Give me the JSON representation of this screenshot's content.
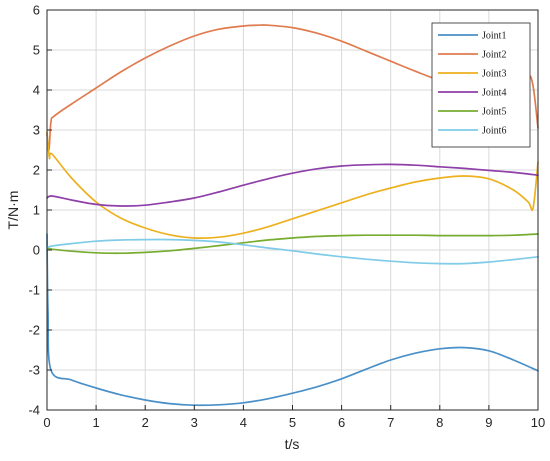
{
  "chart_data": {
    "type": "line",
    "title": "",
    "xlabel": "t/s",
    "ylabel": "T/N·m",
    "xlim": [
      0,
      10
    ],
    "ylim": [
      -4,
      6
    ],
    "xticks": [
      "0",
      "1",
      "2",
      "3",
      "4",
      "5",
      "6",
      "7",
      "8",
      "9",
      "10"
    ],
    "yticks": [
      "-4",
      "-3",
      "-2",
      "-1",
      "0",
      "1",
      "2",
      "3",
      "4",
      "5",
      "6"
    ],
    "grid": true,
    "legend_position": "top-right",
    "series": [
      {
        "name": "Joint1",
        "color": "#4a90c8",
        "points": [
          [
            0,
            0.4
          ],
          [
            0.02,
            -1.5
          ],
          [
            0.08,
            -3.0
          ],
          [
            0.5,
            -3.25
          ],
          [
            1,
            -3.45
          ],
          [
            1.5,
            -3.62
          ],
          [
            2,
            -3.75
          ],
          [
            2.5,
            -3.84
          ],
          [
            3,
            -3.88
          ],
          [
            3.5,
            -3.87
          ],
          [
            4,
            -3.82
          ],
          [
            4.5,
            -3.72
          ],
          [
            5,
            -3.58
          ],
          [
            5.5,
            -3.42
          ],
          [
            6,
            -3.22
          ],
          [
            6.5,
            -2.98
          ],
          [
            7,
            -2.75
          ],
          [
            7.5,
            -2.58
          ],
          [
            8,
            -2.47
          ],
          [
            8.5,
            -2.44
          ],
          [
            9,
            -2.52
          ],
          [
            9.5,
            -2.75
          ],
          [
            10,
            -3.02
          ]
        ]
      },
      {
        "name": "Joint2",
        "color": "#e07b4f",
        "points": [
          [
            0,
            2.9
          ],
          [
            0.04,
            2.5
          ],
          [
            0.08,
            3.2
          ],
          [
            0.15,
            3.35
          ],
          [
            0.5,
            3.65
          ],
          [
            1,
            4.05
          ],
          [
            1.5,
            4.45
          ],
          [
            2,
            4.8
          ],
          [
            2.5,
            5.1
          ],
          [
            3,
            5.35
          ],
          [
            3.5,
            5.52
          ],
          [
            4,
            5.6
          ],
          [
            4.3,
            5.62
          ],
          [
            4.5,
            5.62
          ],
          [
            5,
            5.56
          ],
          [
            5.5,
            5.42
          ],
          [
            6,
            5.22
          ],
          [
            6.5,
            4.97
          ],
          [
            7,
            4.72
          ],
          [
            7.5,
            4.47
          ],
          [
            8,
            4.24
          ],
          [
            8.5,
            4.08
          ],
          [
            9,
            4.0
          ],
          [
            9.3,
            4.02
          ],
          [
            9.6,
            4.18
          ],
          [
            9.8,
            4.38
          ],
          [
            9.9,
            4.1
          ],
          [
            10,
            3.05
          ]
        ]
      },
      {
        "name": "Joint3",
        "color": "#edb120",
        "points": [
          [
            0,
            2.95
          ],
          [
            0.05,
            2.3
          ],
          [
            0.1,
            2.4
          ],
          [
            0.5,
            1.8
          ],
          [
            1,
            1.2
          ],
          [
            1.5,
            0.8
          ],
          [
            2,
            0.55
          ],
          [
            2.5,
            0.38
          ],
          [
            3,
            0.3
          ],
          [
            3.5,
            0.32
          ],
          [
            4,
            0.42
          ],
          [
            4.5,
            0.58
          ],
          [
            5,
            0.78
          ],
          [
            5.5,
            0.98
          ],
          [
            6,
            1.18
          ],
          [
            6.5,
            1.38
          ],
          [
            7,
            1.55
          ],
          [
            7.5,
            1.7
          ],
          [
            8,
            1.8
          ],
          [
            8.5,
            1.85
          ],
          [
            9,
            1.78
          ],
          [
            9.5,
            1.5
          ],
          [
            9.8,
            1.2
          ],
          [
            9.9,
            1.05
          ],
          [
            10,
            2.2
          ]
        ]
      },
      {
        "name": "Joint4",
        "color": "#8e3fa8",
        "points": [
          [
            0,
            1.3
          ],
          [
            0.1,
            1.35
          ],
          [
            0.5,
            1.25
          ],
          [
            1,
            1.14
          ],
          [
            1.5,
            1.1
          ],
          [
            2,
            1.12
          ],
          [
            2.5,
            1.2
          ],
          [
            3,
            1.3
          ],
          [
            3.5,
            1.45
          ],
          [
            4,
            1.62
          ],
          [
            4.5,
            1.78
          ],
          [
            5,
            1.92
          ],
          [
            5.5,
            2.03
          ],
          [
            6,
            2.1
          ],
          [
            6.5,
            2.13
          ],
          [
            7,
            2.14
          ],
          [
            7.5,
            2.12
          ],
          [
            8,
            2.08
          ],
          [
            8.5,
            2.04
          ],
          [
            9,
            1.99
          ],
          [
            9.5,
            1.94
          ],
          [
            10,
            1.87
          ]
        ]
      },
      {
        "name": "Joint5",
        "color": "#77ac30",
        "points": [
          [
            0,
            0.05
          ],
          [
            0.1,
            0.02
          ],
          [
            0.5,
            -0.03
          ],
          [
            1,
            -0.07
          ],
          [
            1.5,
            -0.08
          ],
          [
            2,
            -0.06
          ],
          [
            2.5,
            -0.02
          ],
          [
            3,
            0.04
          ],
          [
            3.5,
            0.11
          ],
          [
            4,
            0.18
          ],
          [
            4.5,
            0.25
          ],
          [
            5,
            0.3
          ],
          [
            5.5,
            0.34
          ],
          [
            6,
            0.36
          ],
          [
            6.5,
            0.37
          ],
          [
            7,
            0.37
          ],
          [
            7.5,
            0.37
          ],
          [
            8,
            0.36
          ],
          [
            8.5,
            0.36
          ],
          [
            9,
            0.36
          ],
          [
            9.5,
            0.37
          ],
          [
            10,
            0.4
          ]
        ]
      },
      {
        "name": "Joint6",
        "color": "#7fcbe8",
        "points": [
          [
            0,
            0.05
          ],
          [
            0.1,
            0.1
          ],
          [
            0.5,
            0.16
          ],
          [
            1,
            0.22
          ],
          [
            1.5,
            0.25
          ],
          [
            2,
            0.26
          ],
          [
            2.5,
            0.26
          ],
          [
            3,
            0.24
          ],
          [
            3.5,
            0.2
          ],
          [
            4,
            0.13
          ],
          [
            4.5,
            0.05
          ],
          [
            5,
            -0.02
          ],
          [
            5.5,
            -0.1
          ],
          [
            6,
            -0.17
          ],
          [
            6.5,
            -0.23
          ],
          [
            7,
            -0.28
          ],
          [
            7.5,
            -0.32
          ],
          [
            8,
            -0.34
          ],
          [
            8.5,
            -0.34
          ],
          [
            9,
            -0.3
          ],
          [
            9.5,
            -0.24
          ],
          [
            10,
            -0.17
          ]
        ]
      }
    ]
  }
}
